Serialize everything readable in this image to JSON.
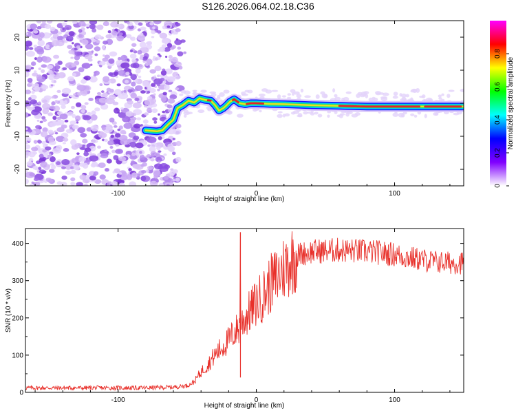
{
  "figure_title": "S126.2026.064.02.18.C36",
  "chart_data": [
    {
      "type": "heatmap",
      "title": "",
      "xlabel": "Height of straight line (km)",
      "ylabel": "Frequency (Hz)",
      "xlim": [
        -167,
        150
      ],
      "ylim": [
        -25,
        25
      ],
      "xticks": [
        -100,
        0,
        100
      ],
      "yticks": [
        -20,
        -10,
        0,
        10,
        20
      ],
      "colorbar": {
        "label": "Normalized spectral amplitude",
        "range": [
          0,
          1
        ],
        "ticks": [
          0,
          0.2,
          0.4,
          0.6,
          0.8
        ],
        "colors": [
          "#ffffff",
          "#8000ff",
          "#0000ff",
          "#00ffff",
          "#00ff00",
          "#ffff00",
          "#ff0000",
          "#ff00ff"
        ]
      },
      "noise_region_x": [
        -167,
        -55
      ],
      "ridge": {
        "x": [
          -80,
          -72,
          -68,
          -64,
          -60,
          -57,
          -53,
          -49,
          -45,
          -41,
          -37,
          -33,
          -30,
          -27,
          -24,
          -22,
          -19,
          -16,
          -12,
          -8,
          -4,
          0,
          10,
          20,
          40,
          60,
          80,
          100,
          120,
          150
        ],
        "frequency": [
          -8.2,
          -8.5,
          -8.2,
          -6.5,
          -5,
          -1.5,
          -0.5,
          0.8,
          0.2,
          1.5,
          1.0,
          0.8,
          -0.5,
          -2.2,
          -1.5,
          -0.8,
          0.5,
          1.2,
          0.0,
          -0.3,
          0.0,
          0.0,
          -0.2,
          -0.3,
          -0.6,
          -0.8,
          -1.0,
          -1.0,
          -1.0,
          -1.0
        ]
      }
    },
    {
      "type": "line",
      "title": "",
      "xlabel": "Height of straight line (km)",
      "ylabel": "SNR (10 * v/v)",
      "xlim": [
        -167,
        150
      ],
      "ylim": [
        0,
        440
      ],
      "xticks": [
        -100,
        0,
        100
      ],
      "yticks": [
        0,
        100,
        200,
        300,
        400
      ],
      "series": [
        {
          "name": "SNR",
          "color": "#e8302a",
          "x": [
            -167,
            -140,
            -110,
            -80,
            -60,
            -50,
            -45,
            -40,
            -35,
            -30,
            -25,
            -20,
            -15,
            -12,
            -10,
            -5,
            0,
            5,
            10,
            15,
            20,
            25,
            30,
            40,
            50,
            60,
            70,
            80,
            90,
            100,
            110,
            120,
            130,
            140,
            150
          ],
          "y": [
            12,
            12,
            12,
            12,
            14,
            18,
            28,
            55,
            75,
            100,
            120,
            140,
            165,
            175,
            190,
            215,
            240,
            260,
            290,
            310,
            335,
            355,
            370,
            378,
            380,
            382,
            380,
            378,
            375,
            370,
            362,
            356,
            350,
            348,
            348
          ],
          "spike": {
            "x": -11.5,
            "y": 430
          }
        }
      ]
    }
  ]
}
